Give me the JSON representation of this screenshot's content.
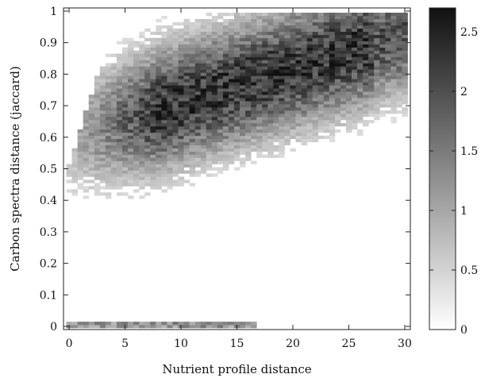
{
  "chart_data": {
    "type": "heatmap",
    "title": "",
    "xlabel": "Nutrient profile distance",
    "ylabel": "Carbon spectra distance (jaccard)",
    "xlim": [
      -0.5,
      30.5
    ],
    "ylim": [
      -0.01,
      1.01
    ],
    "x_ticks": [
      0,
      5,
      10,
      15,
      20,
      25,
      30
    ],
    "x_tick_labels": [
      "0",
      "5",
      "10",
      "15",
      "20",
      "25",
      "30"
    ],
    "y_ticks": [
      0,
      0.1,
      0.2,
      0.3,
      0.4,
      0.5,
      0.6,
      0.7,
      0.8,
      0.9,
      1
    ],
    "y_tick_labels": [
      "0",
      "0.1",
      "0.2",
      "0.3",
      "0.4",
      "0.5",
      "0.6",
      "0.7",
      "0.8",
      "0.9",
      "1"
    ],
    "colorbar": {
      "range": [
        0,
        2.7
      ],
      "ticks": [
        0,
        0.5,
        1,
        1.5,
        2,
        2.5
      ],
      "tick_labels": [
        "0",
        "0.5",
        "1",
        "1.5",
        "2",
        "2.5"
      ],
      "colormap": "gray_reversed"
    },
    "grid": false,
    "density_peak": {
      "x": 15,
      "y": 0.7
    },
    "colors": {
      "low": "#ffffff",
      "high": "#111111"
    }
  }
}
